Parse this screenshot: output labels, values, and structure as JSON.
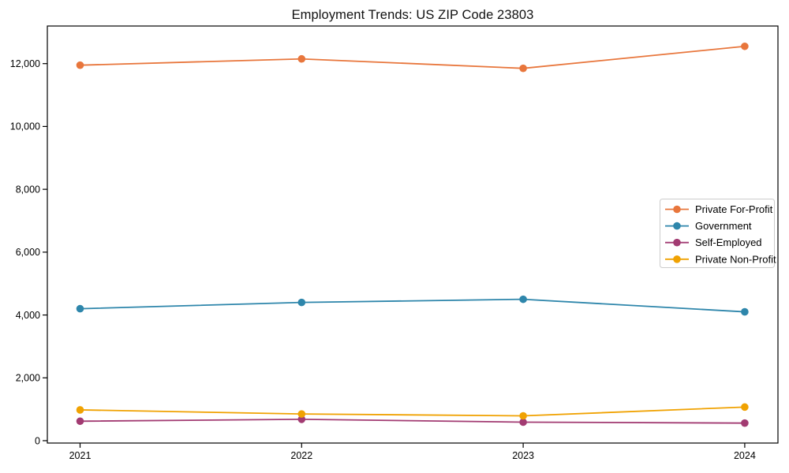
{
  "chart_data": {
    "type": "line",
    "title": "Employment Trends: US ZIP Code 23803",
    "categories": [
      "2021",
      "2022",
      "2023",
      "2024"
    ],
    "series": [
      {
        "name": "Private For-Profit",
        "color": "#E8763C",
        "values": [
          11950,
          12150,
          11850,
          12550
        ]
      },
      {
        "name": "Government",
        "color": "#2E86AB",
        "values": [
          4200,
          4400,
          4500,
          4100
        ]
      },
      {
        "name": "Self-Employed",
        "color": "#A23B72",
        "values": [
          620,
          680,
          590,
          560
        ]
      },
      {
        "name": "Private Non-Profit",
        "color": "#F0A202",
        "values": [
          980,
          850,
          790,
          1070
        ]
      }
    ],
    "xlabel": "",
    "ylabel": "",
    "ylim": [
      -80,
      13200
    ],
    "yticks": [
      0,
      2000,
      4000,
      6000,
      8000,
      10000,
      12000
    ],
    "ytick_labels": [
      "0",
      "2,000",
      "4,000",
      "6,000",
      "8,000",
      "10,000",
      "12,000"
    ],
    "grid": false,
    "legend_position": "center-right",
    "marker": "circle",
    "axes_color": "#000000",
    "legend_border_color": "#cccccc",
    "background": "#ffffff"
  }
}
